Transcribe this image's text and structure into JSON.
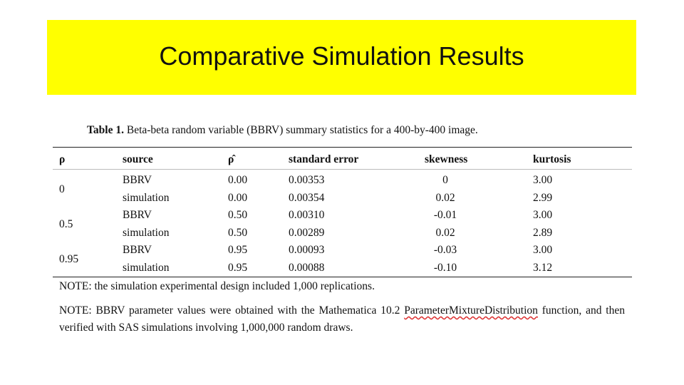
{
  "header": {
    "title": "Comparative Simulation Results"
  },
  "table": {
    "caption": {
      "label": "Table 1.",
      "text": "Beta-beta random variable (BBRV) summary statistics for a 400-by-400 image."
    },
    "columns": [
      "ρ",
      "source",
      "ρ̂",
      "standard error",
      "skewness",
      "kurtosis"
    ],
    "groups": [
      {
        "rho": "0",
        "rows": [
          [
            "BBRV",
            "0.00",
            "0.00353",
            "0",
            "3.00"
          ],
          [
            "simulation",
            "0.00",
            "0.00354",
            "0.02",
            "2.99"
          ]
        ]
      },
      {
        "rho": "0.5",
        "rows": [
          [
            "BBRV",
            "0.50",
            "0.00310",
            "-0.01",
            "3.00"
          ],
          [
            "simulation",
            "0.50",
            "0.00289",
            "0.02",
            "2.89"
          ]
        ]
      },
      {
        "rho": "0.95",
        "rows": [
          [
            "BBRV",
            "0.95",
            "0.00093",
            "-0.03",
            "3.00"
          ],
          [
            "simulation",
            "0.95",
            "0.00088",
            "-0.10",
            "3.12"
          ]
        ]
      }
    ]
  },
  "notes": [
    {
      "parts": [
        "NOTE: the simulation experimental design included 1,000 replications."
      ]
    },
    {
      "parts": [
        "NOTE: BBRV parameter values were obtained with the Mathematica 10.2 ",
        "ParameterMixtureDistribution",
        " function, and then verified with SAS simulations involving 1,000,000 random draws."
      ]
    }
  ]
}
